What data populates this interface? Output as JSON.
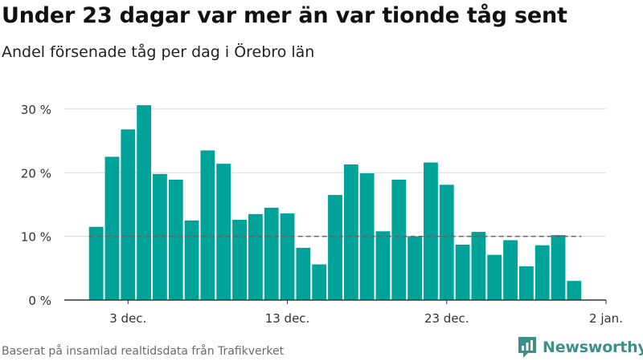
{
  "title": "Under 23 dagar var mer än var tionde tåg sent",
  "subtitle": "Andel försenade tåg per dag i Örebro län",
  "source": "Baserat på insamlad realtidsdata från Trafikverket",
  "brand": {
    "name": "Newsworthy",
    "icon": "newsworthy-logo-icon",
    "color": "#3e8f8a"
  },
  "colors": {
    "bar": "#00a39a",
    "grid": "#d9d9d9",
    "reference_line": "#666666",
    "axis": "#333333"
  },
  "chart_data": {
    "type": "bar",
    "title": "Under 23 dagar var mer än var tionde tåg sent",
    "subtitle": "Andel försenade tåg per dag i Örebro län",
    "x": [
      "2023-12-01",
      "2023-12-02",
      "2023-12-03",
      "2023-12-04",
      "2023-12-05",
      "2023-12-06",
      "2023-12-07",
      "2023-12-08",
      "2023-12-09",
      "2023-12-10",
      "2023-12-11",
      "2023-12-12",
      "2023-12-13",
      "2023-12-14",
      "2023-12-15",
      "2023-12-16",
      "2023-12-17",
      "2023-12-18",
      "2023-12-19",
      "2023-12-20",
      "2023-12-21",
      "2023-12-22",
      "2023-12-23",
      "2023-12-24",
      "2023-12-25",
      "2023-12-26",
      "2023-12-27",
      "2023-12-28",
      "2023-12-29",
      "2023-12-30",
      "2023-12-31"
    ],
    "values": [
      11.5,
      22.5,
      26.8,
      30.6,
      19.8,
      18.9,
      12.5,
      23.5,
      21.4,
      12.6,
      13.5,
      14.5,
      13.6,
      8.2,
      5.6,
      16.5,
      21.3,
      19.9,
      10.8,
      18.9,
      10.0,
      21.6,
      18.1,
      8.7,
      10.7,
      7.1,
      9.4,
      5.3,
      8.6,
      10.2,
      3.0
    ],
    "ylim": [
      0,
      32
    ],
    "yticks": [
      0,
      10,
      20,
      30
    ],
    "ytick_labels": [
      "0 %",
      "10 %",
      "20 %",
      "30 %"
    ],
    "xticks": [
      "2023-12-03",
      "2023-12-13",
      "2023-12-23",
      "2024-01-02"
    ],
    "xtick_labels": [
      "3 dec.",
      "13 dec.",
      "23 dec.",
      "2 jan."
    ],
    "xlim": [
      "2023-11-29",
      "2024-01-02"
    ],
    "reference_line": {
      "y": 10,
      "style": "dashed"
    },
    "grid": true,
    "legend": "none"
  }
}
